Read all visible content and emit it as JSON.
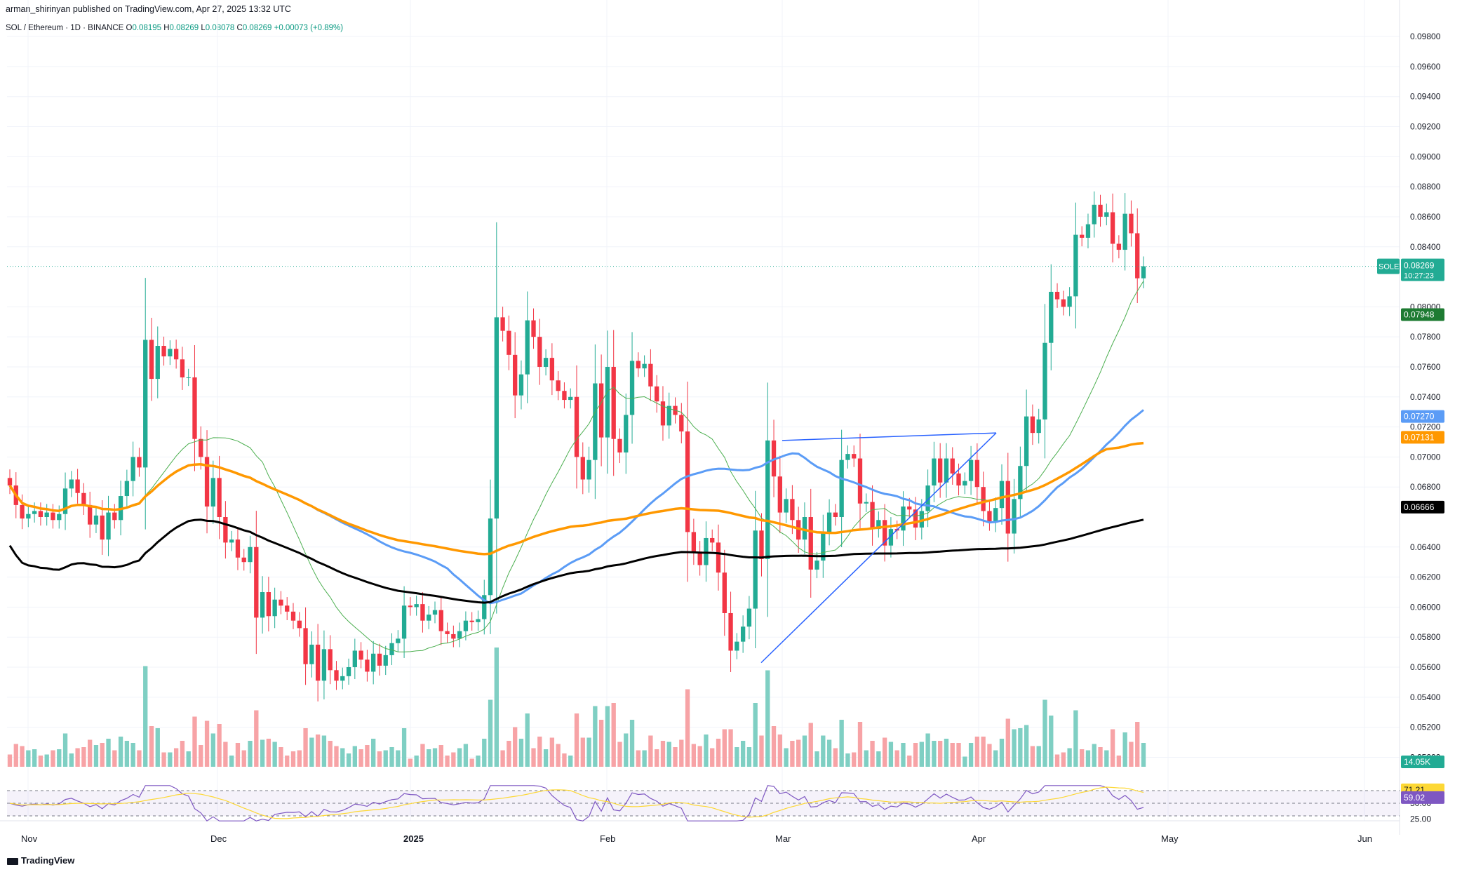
{
  "header": {
    "published": "arman_shirinyan published on TradingView.com, Apr 27, 2025 13:32 UTC",
    "symbol": "SOL / Ethereum · 1D · BINANCE",
    "o_label": "O",
    "o": "0.08195",
    "h_label": "H",
    "h": "0.08269",
    "l_label": "L",
    "l": "0.08078",
    "c_label": "C",
    "c": "0.08269",
    "change": "+0.00073 (+0.89%)"
  },
  "footer": {
    "brand": "TradingView"
  },
  "colors": {
    "up": "#22ab94",
    "down": "#f23645",
    "vol_up": "#7fcfc3",
    "vol_down": "#f7a3a6",
    "sma_short": "#4caf50",
    "sma_mid": "#5b9cf6",
    "sma_orange": "#ff9800",
    "sma_long": "#000000",
    "rsi": "#7e57c2",
    "rsi_ma": "#fdd835",
    "trendline": "#2962ff"
  },
  "price_tags": {
    "symbol_label": "SOLETH",
    "symbol_value": "0.08269",
    "countdown": "10:27:23",
    "ma_green": "0.07948",
    "ma_blue": "0.07270",
    "ma_orange": "0.07131",
    "ma_black": "0.06666",
    "volume": "14.05K",
    "rsi_ma": "71.21",
    "rsi": "59.02"
  },
  "chart_data": {
    "type": "candlestick",
    "symbol": "SOL / Ethereum",
    "timeframe": "1D",
    "exchange": "BINANCE",
    "x_ticks": [
      "Nov",
      "Dec",
      "2025",
      "Feb",
      "Mar",
      "Apr",
      "May",
      "Jun"
    ],
    "y_ticks": [
      "0.09800",
      "0.09600",
      "0.09400",
      "0.09200",
      "0.09000",
      "0.08800",
      "0.08600",
      "0.08400",
      "0.08000",
      "0.07800",
      "0.07600",
      "0.07400",
      "0.07200",
      "0.07000",
      "0.06800",
      "0.06400",
      "0.06200",
      "0.06000",
      "0.05800",
      "0.05600",
      "0.05400",
      "0.05200",
      "0.05000"
    ],
    "ylim": [
      0.0496,
      0.0988
    ],
    "rsi_ticks": [
      "50.00",
      "25.00"
    ],
    "rsi_levels": [
      70,
      50,
      30
    ],
    "closes": [
      0.0681,
      0.0668,
      0.0659,
      0.0662,
      0.0664,
      0.066,
      0.0663,
      0.0658,
      0.0662,
      0.0679,
      0.0685,
      0.0676,
      0.0668,
      0.0655,
      0.0661,
      0.0645,
      0.0663,
      0.0658,
      0.0674,
      0.0684,
      0.07,
      0.0693,
      0.0778,
      0.0752,
      0.0774,
      0.0767,
      0.0772,
      0.0765,
      0.0753,
      0.0753,
      0.0712,
      0.07,
      0.0667,
      0.0686,
      0.066,
      0.0643,
      0.0645,
      0.0633,
      0.063,
      0.064,
      0.0593,
      0.061,
      0.0594,
      0.0605,
      0.0601,
      0.0597,
      0.0591,
      0.0586,
      0.0562,
      0.0575,
      0.0551,
      0.0572,
      0.0558,
      0.0551,
      0.0554,
      0.056,
      0.0571,
      0.0565,
      0.0557,
      0.0569,
      0.0561,
      0.0568,
      0.0576,
      0.0579,
      0.0601,
      0.06,
      0.0602,
      0.0591,
      0.0595,
      0.0598,
      0.0584,
      0.0582,
      0.0579,
      0.0584,
      0.0591,
      0.059,
      0.0592,
      0.0608,
      0.0659,
      0.0793,
      0.0784,
      0.0768,
      0.0741,
      0.0755,
      0.0791,
      0.078,
      0.076,
      0.0766,
      0.0751,
      0.0744,
      0.0738,
      0.074,
      0.07,
      0.0685,
      0.0698,
      0.0749,
      0.0713,
      0.076,
      0.0712,
      0.0703,
      0.0728,
      0.0764,
      0.0759,
      0.0762,
      0.0747,
      0.0737,
      0.0721,
      0.0734,
      0.0728,
      0.0717,
      0.065,
      0.0637,
      0.0628,
      0.0646,
      0.0643,
      0.0623,
      0.0596,
      0.0571,
      0.0577,
      0.0587,
      0.0599,
      0.0651,
      0.0632,
      0.0711,
      0.0687,
      0.0663,
      0.0672,
      0.0658,
      0.0645,
      0.066,
      0.0625,
      0.0631,
      0.065,
      0.0663,
      0.066,
      0.0698,
      0.0702,
      0.0699,
      0.0669,
      0.067,
      0.0652,
      0.0658,
      0.0641,
      0.0652,
      0.0651,
      0.0667,
      0.0665,
      0.0653,
      0.0664,
      0.0681,
      0.0699,
      0.0683,
      0.0699,
      0.0689,
      0.0681,
      0.0684,
      0.0698,
      0.068,
      0.0664,
      0.0657,
      0.0666,
      0.0684,
      0.0649,
      0.0672,
      0.0694,
      0.0727,
      0.0716,
      0.0725,
      0.0776,
      0.081,
      0.0805,
      0.08,
      0.0807,
      0.0848,
      0.0846,
      0.0855,
      0.0868,
      0.086,
      0.0863,
      0.0842,
      0.0838,
      0.0862,
      0.0849,
      0.0819,
      0.0827
    ],
    "volume_panel": {
      "type": "bar",
      "last": "14.05K"
    },
    "moving_averages": [
      {
        "color": "green",
        "last": 0.07948
      },
      {
        "color": "blue",
        "last": 0.0727
      },
      {
        "color": "orange",
        "last": 0.07131
      },
      {
        "color": "black",
        "last": 0.06666
      }
    ],
    "rsi": {
      "last": 59.02,
      "ma_last": 71.21
    }
  }
}
